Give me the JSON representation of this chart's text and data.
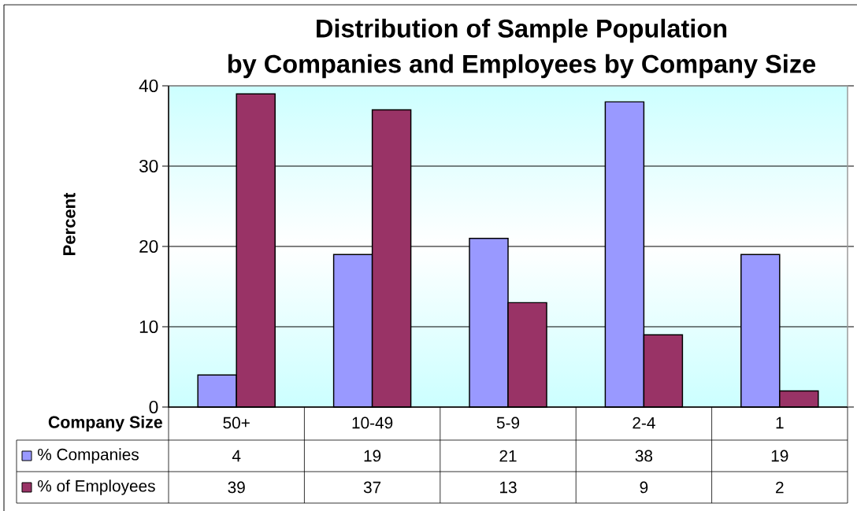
{
  "chart_data": {
    "type": "bar",
    "title": "Distribution of Sample Population by Companies and Employees by Company Size",
    "xlabel": "Company Size",
    "ylabel": "Percent",
    "categories": [
      "50+",
      "10-49",
      "5-9",
      "2-4",
      "1"
    ],
    "series": [
      {
        "name": "% Companies",
        "color": "#9999ff",
        "values": [
          4,
          19,
          21,
          38,
          19
        ]
      },
      {
        "name": "% of Employees",
        "color": "#993366",
        "values": [
          39,
          37,
          13,
          9,
          2
        ]
      }
    ],
    "ylim": [
      0,
      40
    ],
    "yticks": [
      0,
      10,
      20,
      30,
      40
    ],
    "grid": "y",
    "legend": "bottom",
    "data_labels": true
  }
}
